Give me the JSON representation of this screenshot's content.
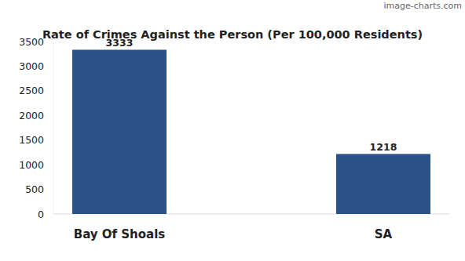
{
  "chart_data": {
    "type": "bar",
    "title": "Rate of Crimes Against the Person (Per 100,000 Residents)",
    "annotation": "image-charts.com",
    "categories": [
      "Bay Of Shoals",
      "SA"
    ],
    "values": [
      3333,
      1218
    ],
    "color": "#2b5189",
    "ylim": [
      0,
      3500
    ],
    "yticks": [
      0,
      500,
      1000,
      1500,
      2000,
      2500,
      3000,
      3500
    ],
    "grid": false,
    "data_labels": true
  }
}
